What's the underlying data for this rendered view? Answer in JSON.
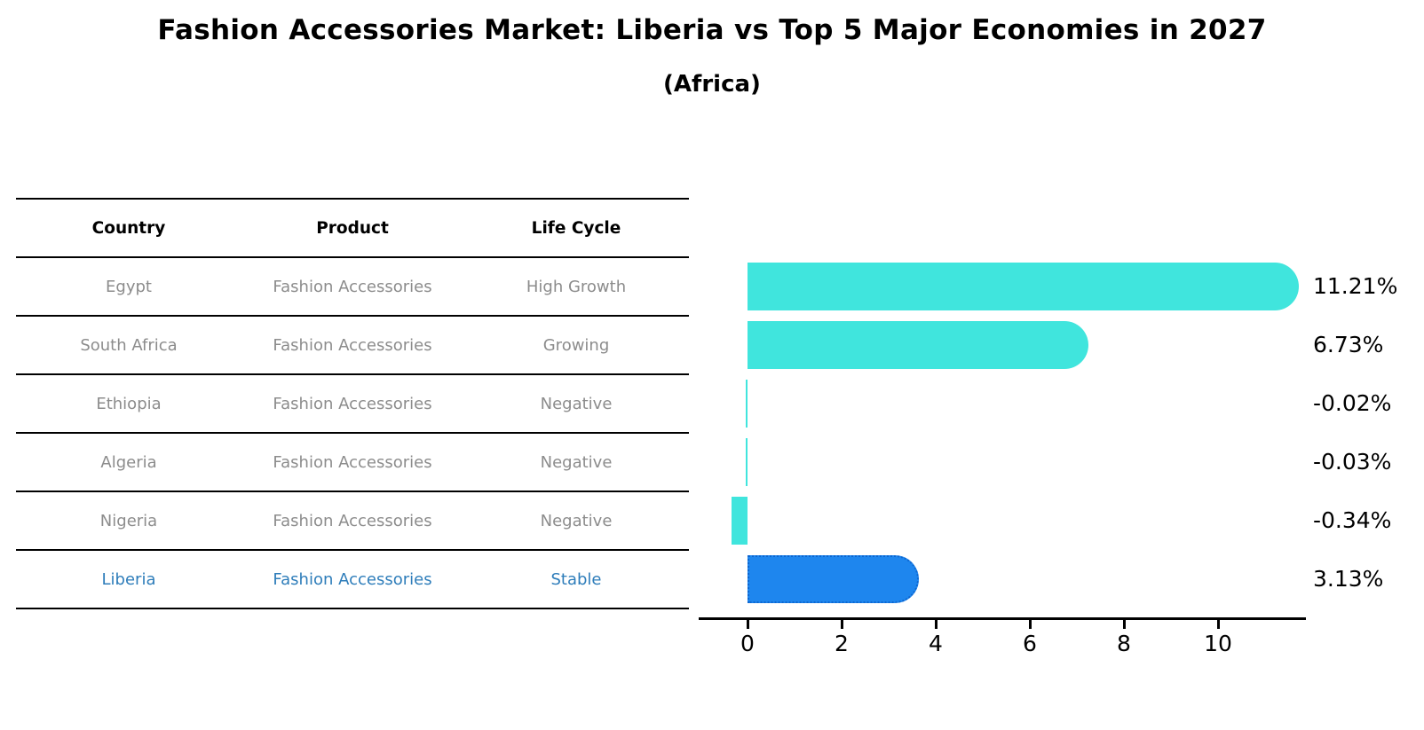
{
  "title": "Fashion Accessories Market: Liberia vs Top 5 Major Economies in 2027",
  "subtitle": "(Africa)",
  "colors": {
    "bar_cyan": "#40e5dd",
    "bar_blue": "#1e86ee",
    "bar_blue_border": "#0d66d0",
    "highlight_text": "#2e7dba",
    "cell_text": "#8c8c8c",
    "header_text": "#000000",
    "axis": "#000000"
  },
  "table": {
    "headers": [
      "Country",
      "Product",
      "Life Cycle"
    ],
    "rows": [
      {
        "country": "Egypt",
        "product": "Fashion Accessories",
        "life_cycle": "High Growth",
        "highlighted": false
      },
      {
        "country": "South Africa",
        "product": "Fashion Accessories",
        "life_cycle": "Growing",
        "highlighted": false
      },
      {
        "country": "Ethiopia",
        "product": "Fashion Accessories",
        "life_cycle": "Negative",
        "highlighted": false
      },
      {
        "country": "Algeria",
        "product": "Fashion Accessories",
        "life_cycle": "Negative",
        "highlighted": false
      },
      {
        "country": "Nigeria",
        "product": "Fashion Accessories",
        "life_cycle": "Negative",
        "highlighted": false
      },
      {
        "country": "Liberia",
        "product": "Fashion Accessories",
        "life_cycle": "Stable",
        "highlighted": true
      }
    ]
  },
  "chart_data": {
    "type": "bar",
    "orientation": "horizontal",
    "title": "Fashion Accessories Market: Liberia vs Top 5 Major Economies in 2027",
    "subtitle": "(Africa)",
    "categories": [
      "Egypt",
      "South Africa",
      "Ethiopia",
      "Algeria",
      "Nigeria",
      "Liberia"
    ],
    "values": [
      11.21,
      6.73,
      -0.02,
      -0.03,
      -0.34,
      3.13
    ],
    "value_labels": [
      "11.21%",
      "6.73%",
      "-0.02%",
      "-0.03%",
      "-0.34%",
      "3.13%"
    ],
    "highlight_index": 5,
    "xticks": [
      0,
      2,
      4,
      6,
      8,
      10
    ],
    "xlim": [
      -1.0,
      11.9
    ],
    "grid": false,
    "legend": false
  }
}
